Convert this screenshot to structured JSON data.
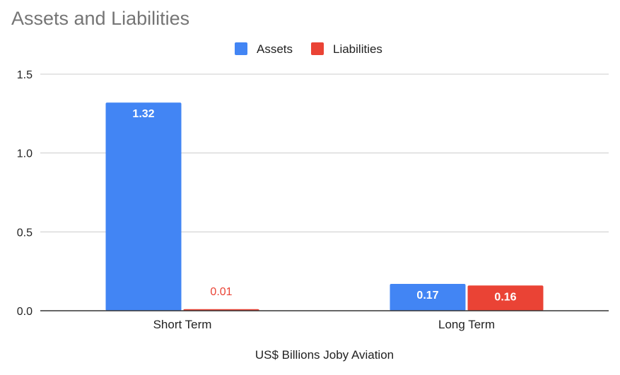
{
  "chart_data": {
    "type": "bar",
    "title": "Assets and Liabilities",
    "xlabel": "US$ Billions Joby Aviation",
    "ylabel": "",
    "categories": [
      "Short Term",
      "Long Term"
    ],
    "series": [
      {
        "name": "Assets",
        "color": "#4285f4",
        "values": [
          1.32,
          0.17
        ],
        "labels": [
          "1.32",
          "0.17"
        ]
      },
      {
        "name": "Liabilities",
        "color": "#ea4335",
        "values": [
          0.01,
          0.16
        ],
        "labels": [
          "0.01",
          "0.16"
        ]
      }
    ],
    "ylim": [
      0,
      1.5
    ],
    "yticks": [
      "0.0",
      "0.5",
      "1.0",
      "1.5"
    ],
    "grid": true,
    "legend": "top-center"
  }
}
